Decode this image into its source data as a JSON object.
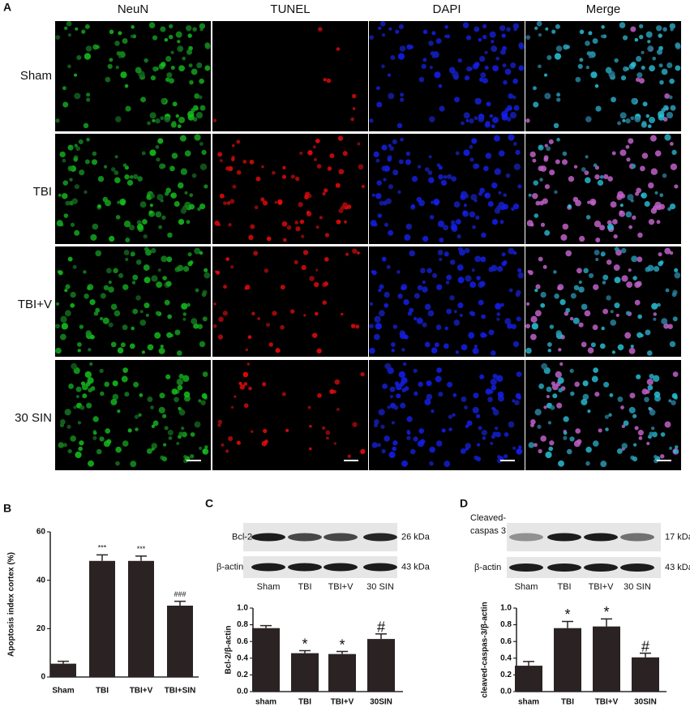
{
  "panels": {
    "a": {
      "label": "A",
      "columns": [
        "NeuN",
        "TUNEL",
        "DAPI",
        "Merge"
      ],
      "rows": [
        "Sham",
        "TBI",
        "TBI+V",
        "30 SIN"
      ]
    },
    "b": {
      "label": "B"
    },
    "c": {
      "label": "C",
      "blot": {
        "bands": [
          [
            "Bcl-2"
          ],
          [
            "β-actin"
          ]
        ],
        "sizes": [
          "26 kDa",
          "43 kDa"
        ],
        "lanes": [
          "Sham",
          "TBI",
          "TBI+V",
          "30 SIN"
        ]
      }
    },
    "d": {
      "label": "D",
      "blot": {
        "bands": [
          [
            "Cleaved-",
            "caspas 3"
          ],
          [
            "β-actin"
          ]
        ],
        "sizes": [
          "17 kDa",
          "43 kDa"
        ],
        "lanes": [
          "Sham",
          "TBI",
          "TBI+V",
          "30 SIN"
        ]
      }
    }
  },
  "chart_data": [
    {
      "type": "bar",
      "ylabel": "Apoptosis index cortex (%)",
      "categories": [
        "Sham",
        "TBI",
        "TBI+V",
        "TBI+SIN"
      ],
      "values": [
        5.5,
        48,
        48,
        29.5
      ],
      "errors": [
        1,
        2.5,
        2,
        1.8
      ],
      "annotations": [
        null,
        "***",
        "***",
        "###"
      ],
      "color": "#2b2323",
      "ylim": [
        0,
        60
      ],
      "yticks": [
        0,
        20,
        40,
        60
      ]
    },
    {
      "type": "bar",
      "ylabel": "Bcl-2/β-actin",
      "categories": [
        "sham",
        "TBI",
        "TBI+V",
        "30SIN"
      ],
      "values": [
        0.76,
        0.46,
        0.45,
        0.63
      ],
      "errors": [
        0.03,
        0.03,
        0.03,
        0.06
      ],
      "annotations": [
        null,
        "*",
        "*",
        "#"
      ],
      "color": "#2b2323",
      "ylim": [
        0,
        1.0
      ],
      "yticks": [
        {
          "value": 0,
          "label": "0.0"
        },
        0.2,
        0.4,
        0.6,
        0.8,
        {
          "value": 1.0,
          "label": "1.0"
        }
      ]
    },
    {
      "type": "bar",
      "ylabel": "cleaved-caspas-3/β-actin",
      "categories": [
        "sham",
        "TBI",
        "TBI+V",
        "30SIN"
      ],
      "values": [
        0.31,
        0.76,
        0.78,
        0.41
      ],
      "errors": [
        0.05,
        0.08,
        0.09,
        0.05
      ],
      "annotations": [
        null,
        "*",
        "*",
        "#"
      ],
      "color": "#2b2323",
      "ylim": [
        0,
        1.0
      ],
      "yticks": [
        {
          "value": 0,
          "label": "0.0"
        },
        0.2,
        0.4,
        0.6,
        0.8,
        {
          "value": 1.0,
          "label": "1.0"
        }
      ]
    }
  ]
}
